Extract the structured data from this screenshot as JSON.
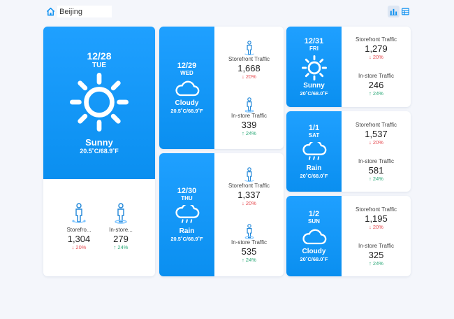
{
  "header": {
    "city": "Beijing",
    "home_icon": "home-icon",
    "chart_view_icon": "bar-chart-icon",
    "table_view_icon": "table-icon"
  },
  "colors": {
    "accent": "#0a8ff0",
    "down": "#e5484d",
    "up": "#2aa876"
  },
  "today": {
    "date": "12/28",
    "day": "TUE",
    "condition": "Sunny",
    "temp": "20.5˚C/68.9˚F",
    "icon": "sun-icon",
    "storefront": {
      "label": "Storefro...",
      "value": "1,304",
      "change": "↓ 20%"
    },
    "instore": {
      "label": "In-store...",
      "value": "279",
      "change": "↑ 24%"
    }
  },
  "days": [
    {
      "date": "12/29",
      "day": "WED",
      "condition": "Cloudy",
      "temp": "20.5˚C/68.9˚F",
      "icon": "cloud-icon",
      "storefront": {
        "label": "Storefront Traffic",
        "value": "1,668",
        "change": "↓ 20%"
      },
      "instore": {
        "label": "In-store Traffic",
        "value": "339",
        "change": "↑ 24%"
      }
    },
    {
      "date": "12/30",
      "day": "THU",
      "condition": "Rain",
      "temp": "20.5˚C/68.9˚F",
      "icon": "rain-icon",
      "storefront": {
        "label": "Storefront Traffic",
        "value": "1,337",
        "change": "↓ 20%"
      },
      "instore": {
        "label": "In-store Traffic",
        "value": "535",
        "change": "↑ 24%"
      }
    },
    {
      "date": "12/31",
      "day": "FRI",
      "condition": "Sunny",
      "temp": "20˚C/68.0˚F",
      "icon": "sun-icon",
      "storefront": {
        "label": "Storefront Traffic",
        "value": "1,279",
        "change": "↓ 20%"
      },
      "instore": {
        "label": "In-store Traffic",
        "value": "246",
        "change": "↑ 24%"
      }
    },
    {
      "date": "1/1",
      "day": "SAT",
      "condition": "Rain",
      "temp": "20˚C/68.0˚F",
      "icon": "rain-icon",
      "storefront": {
        "label": "Storefront Traffic",
        "value": "1,537",
        "change": "↓ 20%"
      },
      "instore": {
        "label": "In-store Traffic",
        "value": "581",
        "change": "↑ 24%"
      }
    },
    {
      "date": "1/2",
      "day": "SUN",
      "condition": "Cloudy",
      "temp": "20˚C/68.0˚F",
      "icon": "cloud-icon",
      "storefront": {
        "label": "Storefront Traffic",
        "value": "1,195",
        "change": "↓ 20%"
      },
      "instore": {
        "label": "In-store Traffic",
        "value": "325",
        "change": "↑ 24%"
      }
    }
  ]
}
